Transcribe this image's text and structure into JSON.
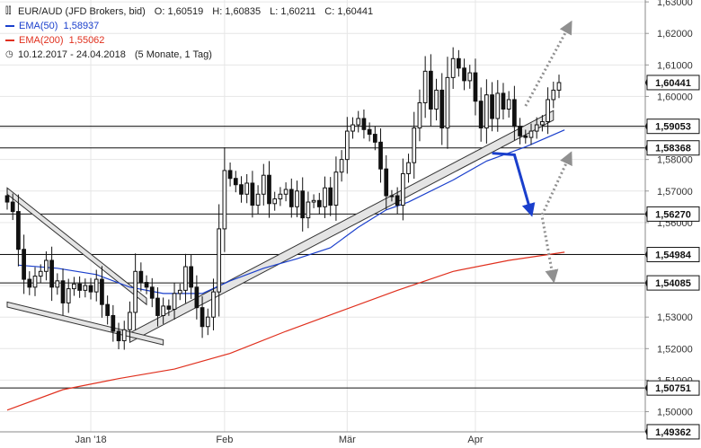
{
  "legend": {
    "symbol": "EUR/AUD (JFD Brokers, bid)",
    "open_label": "O:",
    "open": "1,60519",
    "high_label": "H:",
    "high": "1,60835",
    "low_label": "L:",
    "low": "1,60211",
    "close_label": "C:",
    "close": "1,60441",
    "ema50_label": "EMA(50)",
    "ema50_value": "1,58937",
    "ema50_color": "#1a3fcc",
    "ema200_label": "EMA(200)",
    "ema200_value": "1,55062",
    "ema200_color": "#e0301e",
    "range": "10.12.2017 - 24.04.2018",
    "period": "(5 Monate, 1 Tag)",
    "icons": {
      "chart": "candlestick-icon",
      "ema": "line-swatch",
      "time": "clock-icon"
    }
  },
  "chart_data": {
    "type": "candlestick",
    "ylim": [
      1.4936,
      1.6306
    ],
    "y_ticks": [
      "1,63000",
      "1,62000",
      "1,61000",
      "1,60000",
      "1,59000",
      "1,58000",
      "1,57000",
      "1,56000",
      "1,55000",
      "1,54000",
      "1,53000",
      "1,52000",
      "1,51000",
      "1,50000"
    ],
    "y_tick_values": [
      1.63,
      1.62,
      1.61,
      1.6,
      1.59,
      1.58,
      1.57,
      1.56,
      1.55,
      1.54,
      1.53,
      1.52,
      1.51,
      1.5
    ],
    "x_labels": [
      {
        "label": "Jan '18",
        "index": 15
      },
      {
        "label": "Feb",
        "index": 39
      },
      {
        "label": "Mär",
        "index": 61
      },
      {
        "label": "Apr",
        "index": 84
      }
    ],
    "n_days": 100,
    "closes": [
      1.5665,
      1.5635,
      1.5515,
      1.542,
      1.5395,
      1.543,
      1.5445,
      1.548,
      1.5395,
      1.5415,
      1.5345,
      1.539,
      1.5405,
      1.5385,
      1.54,
      1.538,
      1.542,
      1.534,
      1.5305,
      1.5255,
      1.5225,
      1.526,
      1.5315,
      1.5445,
      1.541,
      1.5395,
      1.536,
      1.5305,
      1.5335,
      1.5325,
      1.5375,
      1.5385,
      1.546,
      1.5395,
      1.533,
      1.527,
      1.53,
      1.538,
      1.558,
      1.5765,
      1.574,
      1.572,
      1.569,
      1.5725,
      1.5655,
      1.569,
      1.575,
      1.566,
      1.5675,
      1.569,
      1.5705,
      1.565,
      1.57,
      1.5615,
      1.5665,
      1.567,
      1.565,
      1.571,
      1.5655,
      1.576,
      1.58,
      1.589,
      1.591,
      1.593,
      1.5895,
      1.588,
      1.5855,
      1.577,
      1.5685,
      1.5685,
      1.5655,
      1.5755,
      1.579,
      1.59,
      1.598,
      1.608,
      1.596,
      1.602,
      1.59,
      1.606,
      1.612,
      1.609,
      1.605,
      1.6075,
      1.5985,
      1.59,
      1.6005,
      1.593,
      1.601,
      1.596,
      1.599,
      1.5905,
      1.5875,
      1.587,
      1.589,
      1.591,
      1.592,
      1.599,
      1.602,
      1.6044
    ],
    "annotated_levels": [
      {
        "label": "1,60441",
        "value": 1.60441,
        "line": false
      },
      {
        "label": "1,59053",
        "value": 1.59053,
        "line": true
      },
      {
        "label": "1,58368",
        "value": 1.58368,
        "line": true
      },
      {
        "label": "1,56270",
        "value": 1.5627,
        "line": true
      },
      {
        "label": "1,54984",
        "value": 1.54984,
        "line": true
      },
      {
        "label": "1,54085",
        "value": 1.54085,
        "line": true
      },
      {
        "label": "1,50751",
        "value": 1.50751,
        "line": true
      },
      {
        "label": "1,49362",
        "value": 1.49362,
        "line": false
      }
    ],
    "ema50": [
      [
        2,
        1.5465
      ],
      [
        9,
        1.5455
      ],
      [
        16,
        1.5435
      ],
      [
        22,
        1.5395
      ],
      [
        28,
        1.5375
      ],
      [
        35,
        1.5375
      ],
      [
        40,
        1.5415
      ],
      [
        46,
        1.5455
      ],
      [
        52,
        1.5485
      ],
      [
        58,
        1.552
      ],
      [
        63,
        1.5585
      ],
      [
        68,
        1.564
      ],
      [
        72,
        1.5665
      ],
      [
        80,
        1.5735
      ],
      [
        86,
        1.5795
      ],
      [
        93,
        1.584
      ],
      [
        100,
        1.5894
      ]
    ],
    "ema200": [
      [
        0,
        1.5005
      ],
      [
        10,
        1.507
      ],
      [
        20,
        1.5105
      ],
      [
        30,
        1.5135
      ],
      [
        40,
        1.5185
      ],
      [
        50,
        1.5255
      ],
      [
        60,
        1.532
      ],
      [
        70,
        1.5385
      ],
      [
        80,
        1.5445
      ],
      [
        90,
        1.548
      ],
      [
        100,
        1.5506
      ]
    ],
    "channels": [
      {
        "name": "lower-trend-channel",
        "from": [
          22,
          1.5235
        ],
        "to": [
          98,
          1.594
        ],
        "width": 0.0015
      },
      {
        "name": "upper-left-channel",
        "from": [
          0,
          1.57
        ],
        "to": [
          25,
          1.535
        ],
        "width": 0.001
      },
      {
        "name": "left-lower-channel",
        "from": [
          0,
          1.534
        ],
        "to": [
          28,
          1.522
        ],
        "width": 0.0008
      }
    ],
    "scenario": {
      "bearish_path": [
        [
          87,
          1.582
        ],
        [
          91,
          1.5815
        ],
        [
          94,
          1.563
        ]
      ],
      "dotted_up_top": [
        [
          93,
          1.597
        ],
        [
          101,
          1.623
        ]
      ],
      "dotted_up_mid": [
        [
          96,
          1.5625
        ],
        [
          101,
          1.5815
        ]
      ],
      "dotted_down": [
        [
          96,
          1.5615
        ],
        [
          98,
          1.542
        ]
      ],
      "arrow_color": "#1a3fcc",
      "dotted_color": "#909090"
    },
    "candle_up_color": "#ffffff",
    "candle_down_color": "#111111",
    "grid": true
  }
}
